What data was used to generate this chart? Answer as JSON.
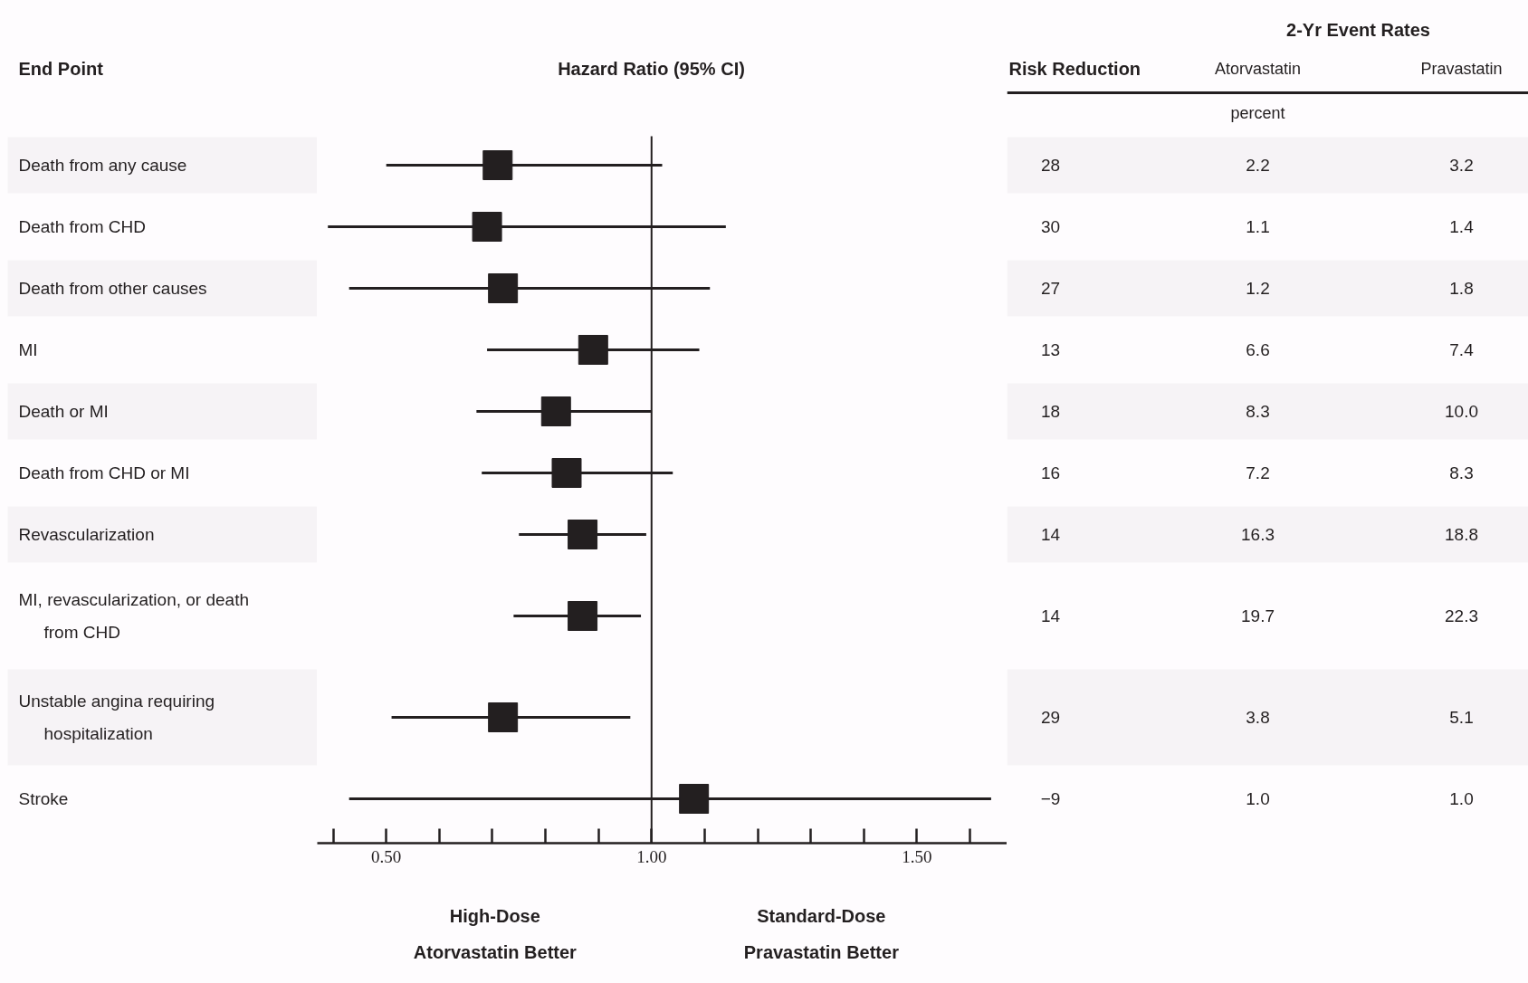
{
  "chart_data": {
    "type": "scatter",
    "orientation": "horizontal",
    "marker": "square",
    "color": "#231f20",
    "ylabel": "End Point",
    "xlabel": "Hazard Ratio (95% CI)",
    "categories": [
      "Death from any cause",
      "Death from CHD",
      "Death from other causes",
      "MI",
      "Death or MI",
      "Death from CHD or MI",
      "Revascularization",
      "MI, revascularization, or death from CHD",
      "Unstable angina requiring hospitalization",
      "Stroke"
    ],
    "values": [
      0.71,
      0.69,
      0.72,
      0.89,
      0.82,
      0.84,
      0.87,
      0.87,
      0.72,
      1.08
    ],
    "errors": [
      [
        0.5,
        1.02
      ],
      [
        0.39,
        1.14
      ],
      [
        0.43,
        1.11
      ],
      [
        0.69,
        1.09
      ],
      [
        0.67,
        1.0
      ],
      [
        0.68,
        1.04
      ],
      [
        0.75,
        0.99
      ],
      [
        0.74,
        0.98
      ],
      [
        0.51,
        0.96
      ],
      [
        0.43,
        1.64
      ]
    ],
    "xlim": [
      0.37,
      1.67
    ],
    "xticks": [
      {
        "value": 0.4,
        "label": null
      },
      {
        "value": 0.5,
        "label": "0.50"
      },
      {
        "value": 0.6,
        "label": null
      },
      {
        "value": 0.7,
        "label": null
      },
      {
        "value": 0.8,
        "label": null
      },
      {
        "value": 0.9,
        "label": null
      },
      {
        "value": 1.0,
        "label": "1.00"
      },
      {
        "value": 1.1,
        "label": null
      },
      {
        "value": 1.2,
        "label": null
      },
      {
        "value": 1.3,
        "label": null
      },
      {
        "value": 1.4,
        "label": null
      },
      {
        "value": 1.5,
        "label": "1.50"
      },
      {
        "value": 1.6,
        "label": null
      }
    ],
    "ref_lines": [
      {
        "axis": "x",
        "value": 1.0,
        "label": null,
        "color": "#231f20"
      }
    ],
    "annotations": [
      "2-Yr Event Rates",
      "Risk Reduction",
      "Atorvastatin",
      "Pravastatin",
      "percent",
      "High-Dose Atorvastatin Better",
      "Standard-Dose Pravastatin Better",
      "28",
      "2.2",
      "3.2",
      "30",
      "1.1",
      "1.4",
      "27",
      "1.2",
      "1.8",
      "13",
      "6.6",
      "7.4",
      "18",
      "8.3",
      "10.0",
      "16",
      "7.2",
      "8.3",
      "14",
      "16.3",
      "18.8",
      "14",
      "19.7",
      "22.3",
      "29",
      "3.8",
      "5.1",
      "−9",
      "1.0",
      "1.0"
    ]
  }
}
